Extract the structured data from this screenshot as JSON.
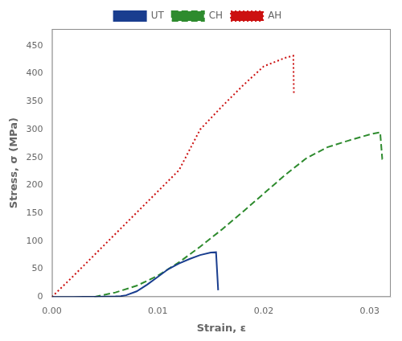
{
  "chart_data": {
    "type": "line",
    "xlabel": "Strain, ε",
    "ylabel": "Stress, σ (MPa)",
    "xlim": [
      0.0,
      0.032
    ],
    "ylim": [
      0,
      480
    ],
    "xticks": [
      {
        "value": 0.0,
        "label": "0.00"
      },
      0.01,
      0.02,
      0.03
    ],
    "yticks": [
      0,
      50,
      100,
      150,
      200,
      250,
      300,
      350,
      400,
      450
    ],
    "grid": false,
    "legend": "top",
    "series": [
      {
        "name": "UT",
        "color": "#1a3e8f",
        "line_style": "solid",
        "x": [
          0.0,
          0.001,
          0.002,
          0.003,
          0.004,
          0.005,
          0.006,
          0.0065,
          0.007,
          0.008,
          0.009,
          0.01,
          0.011,
          0.012,
          0.013,
          0.014,
          0.015,
          0.0155,
          0.0157,
          0.01571
        ],
        "values": [
          0.0,
          0.05,
          0.1,
          0.15,
          0.3,
          0.5,
          1.0,
          1.5,
          3.0,
          10.0,
          22.0,
          36.0,
          50.0,
          60.0,
          68.0,
          75.0,
          79.5,
          80.0,
          12.0,
          12.0
        ]
      },
      {
        "name": "CH",
        "color": "#2e8b2e",
        "line_style": "dashed",
        "x": [
          0.004,
          0.006,
          0.008,
          0.01,
          0.012,
          0.014,
          0.016,
          0.018,
          0.02,
          0.022,
          0.024,
          0.026,
          0.028,
          0.03,
          0.031,
          0.0312,
          0.03121
        ],
        "values": [
          0.0,
          8.0,
          20.0,
          38.0,
          62.0,
          90.0,
          120.0,
          152.0,
          185.0,
          218.0,
          248.0,
          268.0,
          280.0,
          291.0,
          295.0,
          247.0,
          247.0
        ]
      },
      {
        "name": "AH",
        "color": "#cc1111",
        "line_style": "dotted",
        "x": [
          0.0,
          0.002,
          0.004,
          0.006,
          0.008,
          0.01,
          0.012,
          0.014,
          0.016,
          0.018,
          0.02,
          0.022,
          0.0228,
          0.02285,
          0.02286
        ],
        "values": [
          0.0,
          37.0,
          75.0,
          113.0,
          151.0,
          189.0,
          227.0,
          300.0,
          340.0,
          378.0,
          413.0,
          428.0,
          432.0,
          365.0,
          362.0
        ]
      }
    ]
  }
}
